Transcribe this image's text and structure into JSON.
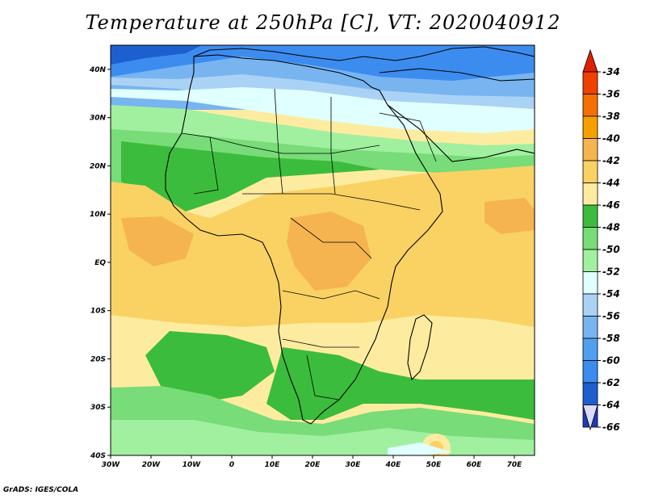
{
  "title": "Temperature at 250hPa [C], VT: 2020040912",
  "credit": "GrADS: IGES/COLA",
  "map": {
    "lat_labels": [
      "40N",
      "30N",
      "20N",
      "10N",
      "EQ",
      "10S",
      "20S",
      "30S",
      "40S"
    ],
    "lon_labels": [
      "30W",
      "20W",
      "10W",
      "0",
      "10E",
      "20E",
      "30E",
      "40E",
      "50E",
      "60E",
      "70E"
    ],
    "lat_range": [
      -40,
      45
    ],
    "lon_range": [
      -30,
      75
    ],
    "palette": {
      "deep_blue": "#1e5fd0",
      "blue": "#3c8cf0",
      "light_blue": "#78b4f0",
      "pale_blue": "#aad2f5",
      "cyan_white": "#e0ffff",
      "pale_green": "#a0f0a0",
      "light_green": "#78dc78",
      "green": "#3cbc3c",
      "pale_yellow": "#fdeca0",
      "yellow": "#fad264",
      "orange_yellow": "#f5b450"
    }
  },
  "colorbar": {
    "labels": [
      "-34",
      "-36",
      "-38",
      "-40",
      "-42",
      "-44",
      "-46",
      "-48",
      "-50",
      "-52",
      "-54",
      "-56",
      "-58",
      "-60",
      "-62",
      "-64",
      "-66"
    ],
    "colors": [
      "#f04000",
      "#f57000",
      "#f5a000",
      "#f5b450",
      "#fad264",
      "#fdeca0",
      "#3cbc3c",
      "#78dc78",
      "#a0f0a0",
      "#e0ffff",
      "#aad2f5",
      "#78b4f0",
      "#50a0f0",
      "#3c8cf0",
      "#1e5fd0",
      "#1e3cb4",
      "#0a0a78"
    ],
    "top_arrow_color": "#e02000",
    "bottom_arrow_color": "#dcdcff"
  }
}
